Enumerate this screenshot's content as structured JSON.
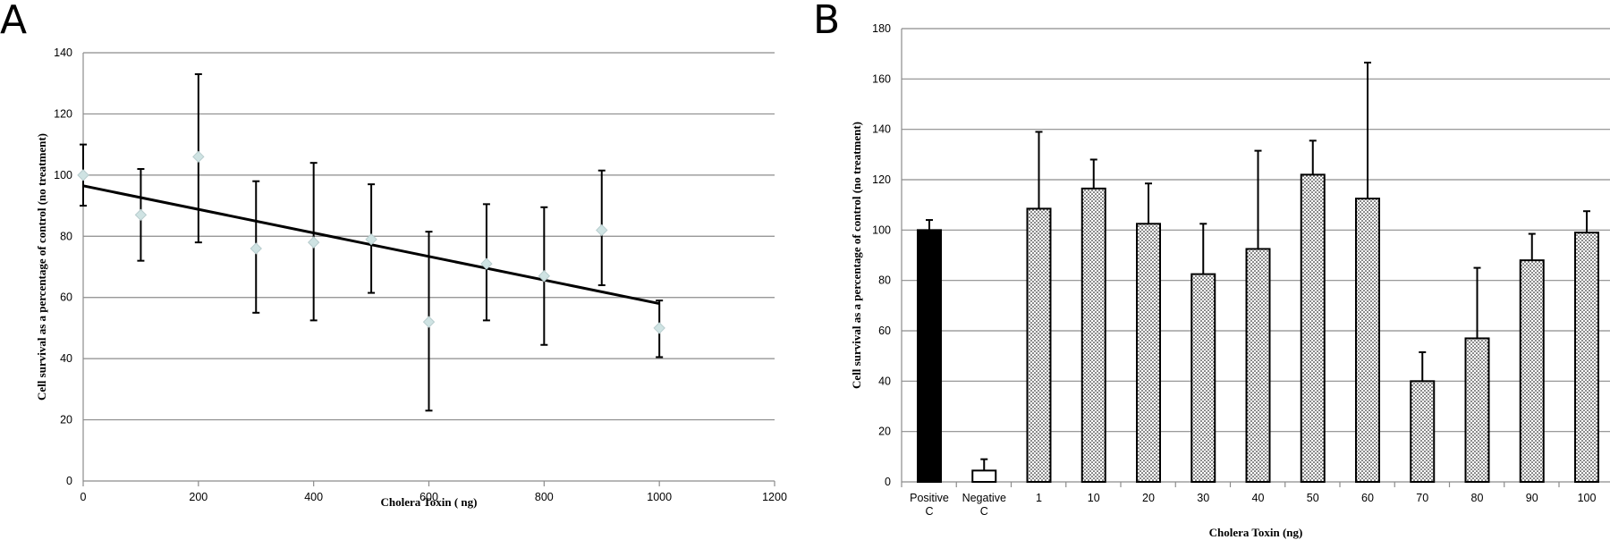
{
  "chart_data": [
    {
      "panel": "A",
      "type": "scatter",
      "title": "",
      "xlabel": "Cholera Toxin ( ng)",
      "ylabel": "Cell survival as a percentage of control (no treatment)",
      "xlim": [
        0,
        1200
      ],
      "ylim": [
        0,
        140
      ],
      "xticks": [
        0,
        200,
        400,
        600,
        800,
        1000,
        1200
      ],
      "yticks": [
        0,
        20,
        40,
        60,
        80,
        100,
        120,
        140
      ],
      "grid": true,
      "x": [
        0,
        100,
        200,
        300,
        400,
        500,
        600,
        700,
        800,
        900,
        1000
      ],
      "y": [
        100,
        87,
        106,
        76,
        78,
        79,
        52,
        71,
        67,
        82,
        50
      ],
      "err_upper": [
        110,
        102,
        133,
        98,
        104,
        97,
        81.5,
        90.5,
        89.5,
        101.5,
        59
      ],
      "err_lower": [
        90,
        72,
        78,
        55,
        52.5,
        61.5,
        23,
        52.5,
        44.5,
        64,
        40.5
      ],
      "trendline": {
        "x": [
          0,
          1000
        ],
        "y": [
          96.5,
          58
        ]
      }
    },
    {
      "panel": "B",
      "type": "bar",
      "title": "",
      "xlabel": "Cholera  Toxin (ng)",
      "ylabel": "Cell survival as a percentage of control (no treatment)",
      "ylim": [
        0,
        180
      ],
      "yticks": [
        0,
        20,
        40,
        60,
        80,
        100,
        120,
        140,
        160,
        180
      ],
      "grid": true,
      "categories": [
        [
          "Positive",
          "C"
        ],
        [
          "Negative",
          "C"
        ],
        [
          "1"
        ],
        [
          "10"
        ],
        [
          "20"
        ],
        [
          "30"
        ],
        [
          "40"
        ],
        [
          "50"
        ],
        [
          "60"
        ],
        [
          "70"
        ],
        [
          "80"
        ],
        [
          "90"
        ],
        [
          "100"
        ]
      ],
      "values": [
        100,
        4.5,
        108.5,
        116.5,
        102.5,
        82.5,
        92.5,
        122,
        112.5,
        40,
        57,
        88,
        99
      ],
      "err_upper": [
        104,
        9,
        139,
        128,
        118.5,
        102.5,
        131.5,
        135.5,
        166.5,
        51.5,
        85,
        98.5,
        107.5
      ],
      "fills": [
        "solid",
        "empty",
        "dotted",
        "dotted",
        "dotted",
        "dotted",
        "dotted",
        "dotted",
        "dotted",
        "dotted",
        "dotted",
        "dotted",
        "dotted"
      ]
    }
  ]
}
